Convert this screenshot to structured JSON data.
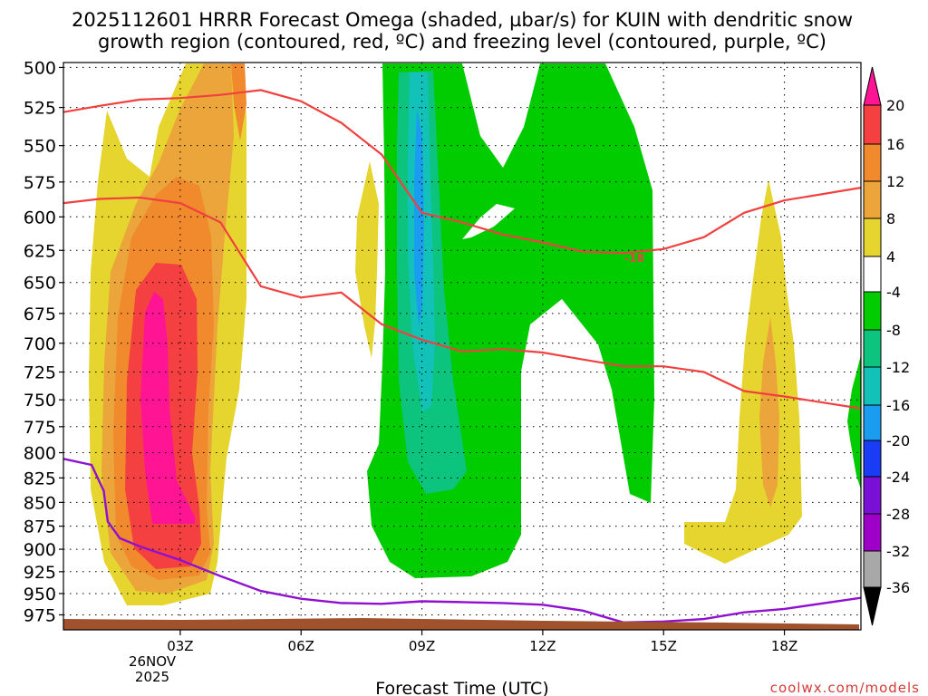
{
  "chart_data": {
    "type": "heatmap",
    "title_lines": [
      "2025112601 HRRR Forecast Omega (shaded, µbar/s) for KUIN with dendritic snow",
      "growth region (contoured, red, ºC) and freezing level (contoured, purple, ºC)"
    ],
    "xlabel": "Forecast Time (UTC)",
    "x_ticks": [
      "03Z",
      "06Z",
      "09Z",
      "12Z",
      "15Z",
      "18Z"
    ],
    "x_tick_hours": [
      3,
      6,
      9,
      12,
      15,
      18
    ],
    "x_date_lines": [
      "26NOV",
      "2025"
    ],
    "xlim": [
      0.1,
      19.9
    ],
    "y_ticks": [
      500,
      525,
      550,
      575,
      600,
      625,
      650,
      675,
      700,
      725,
      750,
      775,
      800,
      825,
      850,
      875,
      900,
      925,
      950,
      975
    ],
    "ylim": [
      497,
      993
    ],
    "y_scale": "log-pressure",
    "grid": true,
    "colorbar": {
      "labels": [
        "20",
        "16",
        "12",
        "8",
        "4",
        "-4",
        "-8",
        "-12",
        "-16",
        "-20",
        "-24",
        "-28",
        "-32",
        "-36"
      ],
      "colors": {
        "magenta": "#ff1493",
        "red": "#f44040",
        "orange": "#f08a2c",
        "light_orange": "#eba53a",
        "yellow": "#e6d52e",
        "white": "#ffffff",
        "green": "#00cc00",
        "sea_green": "#0dc47e",
        "teal": "#12c2b8",
        "light_blue": "#1a9cf0",
        "blue": "#1a3cf5",
        "purple": "#7a10d6",
        "violet": "#9f00c7",
        "gray": "#a8a8a8"
      }
    },
    "contour_label": "-18",
    "contours": {
      "dgz_upper_color": "#f04040",
      "dgz_upper": [
        [
          0.1,
          528
        ],
        [
          1,
          524
        ],
        [
          2,
          520
        ],
        [
          3,
          519
        ],
        [
          4,
          517
        ],
        [
          5,
          514
        ],
        [
          6,
          521
        ],
        [
          7,
          535
        ],
        [
          8,
          556
        ],
        [
          9,
          597
        ],
        [
          10,
          604
        ],
        [
          11,
          613
        ],
        [
          12,
          619
        ],
        [
          13,
          626
        ],
        [
          14,
          627
        ],
        [
          15,
          624
        ],
        [
          16,
          615
        ],
        [
          17,
          597
        ],
        [
          18,
          588
        ],
        [
          19.9,
          579
        ]
      ],
      "dgz_lower_color": "#f04040",
      "dgz_lower": [
        [
          0.1,
          590
        ],
        [
          1,
          587
        ],
        [
          2,
          586
        ],
        [
          3,
          590
        ],
        [
          4,
          604
        ],
        [
          5,
          653
        ],
        [
          6,
          662
        ],
        [
          7,
          658
        ],
        [
          8,
          684
        ],
        [
          9,
          697
        ],
        [
          10,
          707
        ],
        [
          11,
          705
        ],
        [
          12,
          708
        ],
        [
          13,
          714
        ],
        [
          14,
          720
        ],
        [
          15,
          720
        ],
        [
          16,
          725
        ],
        [
          17,
          742
        ],
        [
          18,
          747
        ],
        [
          19.9,
          758
        ]
      ],
      "freezing_color": "#9010d0",
      "freezing": [
        [
          0.1,
          806
        ],
        [
          0.8,
          812
        ],
        [
          1.1,
          838
        ],
        [
          1.2,
          870
        ],
        [
          1.5,
          888
        ],
        [
          2,
          897
        ],
        [
          3,
          912
        ],
        [
          4,
          930
        ],
        [
          5,
          947
        ],
        [
          6,
          956
        ],
        [
          7,
          961
        ],
        [
          8,
          962
        ],
        [
          9,
          959
        ],
        [
          10,
          960
        ],
        [
          11,
          961
        ],
        [
          12,
          963
        ],
        [
          13,
          970
        ],
        [
          14,
          984
        ],
        [
          15,
          983
        ],
        [
          16,
          980
        ],
        [
          17,
          972
        ],
        [
          18,
          968
        ],
        [
          19.9,
          955
        ]
      ]
    },
    "terrain_color": "#a0522d"
  },
  "watermark": "coolwx.com/models"
}
